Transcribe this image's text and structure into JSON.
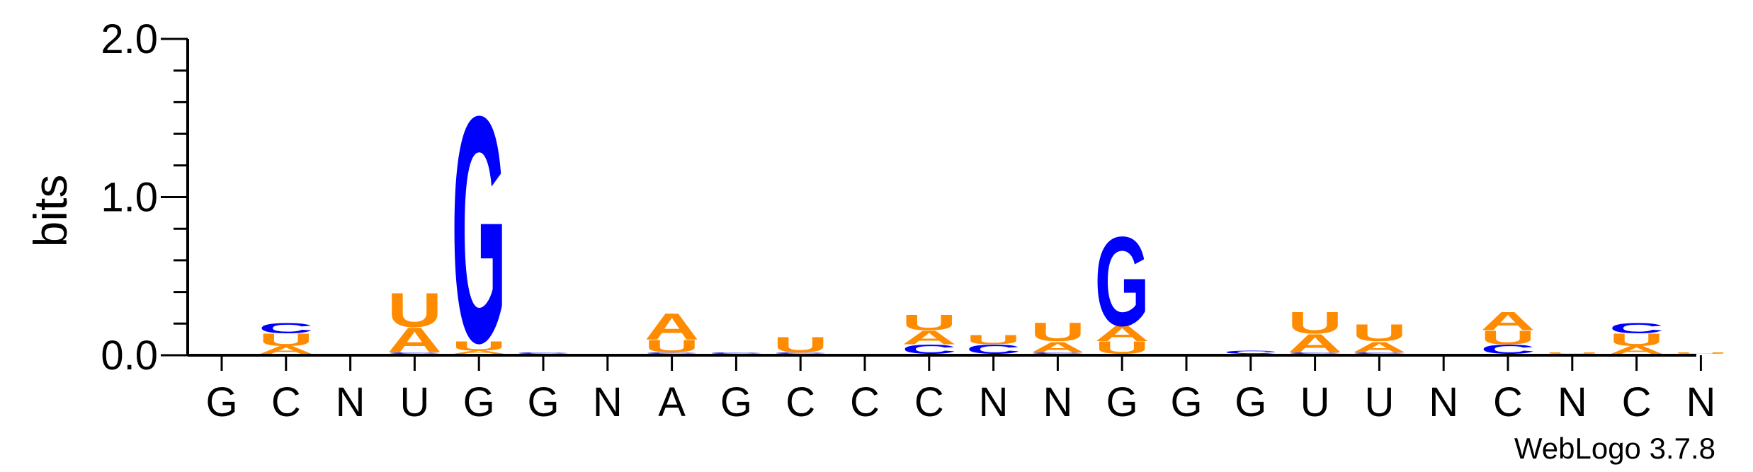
{
  "chart_data": {
    "type": "sequence-logo",
    "ylabel": "bits",
    "ylim": [
      0,
      2.0
    ],
    "yticks": [
      "0.0",
      "1.0",
      "2.0"
    ],
    "colors": {
      "A": "#ff8c00",
      "U": "#ff8c00",
      "G": "#0000ff",
      "C": "#0000ff"
    },
    "positions": [
      {
        "label": "G",
        "stack": []
      },
      {
        "label": "C",
        "stack": [
          {
            "l": "A",
            "h": 0.05
          },
          {
            "l": "U",
            "h": 0.08
          },
          {
            "l": "C",
            "h": 0.07
          }
        ]
      },
      {
        "label": "N",
        "stack": []
      },
      {
        "label": "U",
        "stack": [
          {
            "l": "C",
            "h": 0.01
          },
          {
            "l": "A",
            "h": 0.16
          },
          {
            "l": "U",
            "h": 0.22
          }
        ]
      },
      {
        "label": "G",
        "stack": [
          {
            "l": "A",
            "h": 0.02
          },
          {
            "l": "U",
            "h": 0.06
          },
          {
            "l": "G",
            "h": 1.47
          }
        ]
      },
      {
        "label": "G",
        "stack": [
          {
            "l": "C",
            "h": 0.01
          }
        ]
      },
      {
        "label": "N",
        "stack": []
      },
      {
        "label": "A",
        "stack": [
          {
            "l": "C",
            "h": 0.01
          },
          {
            "l": "U",
            "h": 0.08
          },
          {
            "l": "A",
            "h": 0.17
          }
        ]
      },
      {
        "label": "G",
        "stack": [
          {
            "l": "C",
            "h": 0.01
          }
        ]
      },
      {
        "label": "C",
        "stack": [
          {
            "l": "C",
            "h": 0.01
          },
          {
            "l": "U",
            "h": 0.1
          }
        ]
      },
      {
        "label": "C",
        "stack": []
      },
      {
        "label": "C",
        "stack": [
          {
            "l": "C",
            "h": 0.06
          },
          {
            "l": "A",
            "h": 0.09
          },
          {
            "l": "U",
            "h": 0.1
          }
        ]
      },
      {
        "label": "N",
        "stack": [
          {
            "l": "C",
            "h": 0.06
          },
          {
            "l": "U",
            "h": 0.06
          }
        ]
      },
      {
        "label": "N",
        "stack": [
          {
            "l": "C",
            "h": 0.01
          },
          {
            "l": "A",
            "h": 0.07
          },
          {
            "l": "U",
            "h": 0.12
          }
        ]
      },
      {
        "label": "G",
        "stack": [
          {
            "l": "U",
            "h": 0.08
          },
          {
            "l": "A",
            "h": 0.1
          },
          {
            "l": "G",
            "h": 0.58
          }
        ]
      },
      {
        "label": "G",
        "stack": []
      },
      {
        "label": "G",
        "stack": [
          {
            "l": "C",
            "h": 0.02
          }
        ]
      },
      {
        "label": "U",
        "stack": [
          {
            "l": "C",
            "h": 0.01
          },
          {
            "l": "A",
            "h": 0.12
          },
          {
            "l": "U",
            "h": 0.14
          }
        ]
      },
      {
        "label": "U",
        "stack": [
          {
            "l": "C",
            "h": 0.01
          },
          {
            "l": "A",
            "h": 0.07
          },
          {
            "l": "U",
            "h": 0.11
          }
        ]
      },
      {
        "label": "N",
        "stack": []
      },
      {
        "label": "C",
        "stack": [
          {
            "l": "C",
            "h": 0.06
          },
          {
            "l": "U",
            "h": 0.09
          },
          {
            "l": "A",
            "h": 0.12
          }
        ]
      },
      {
        "label": "N",
        "stack": [
          {
            "l": "U",
            "h": 0.01
          }
        ]
      },
      {
        "label": "C",
        "stack": [
          {
            "l": "A",
            "h": 0.05
          },
          {
            "l": "U",
            "h": 0.08
          },
          {
            "l": "C",
            "h": 0.07
          }
        ]
      },
      {
        "label": "N",
        "stack": [
          {
            "l": "U",
            "h": 0.01
          }
        ]
      }
    ]
  },
  "credit": "WebLogo 3.7.8"
}
